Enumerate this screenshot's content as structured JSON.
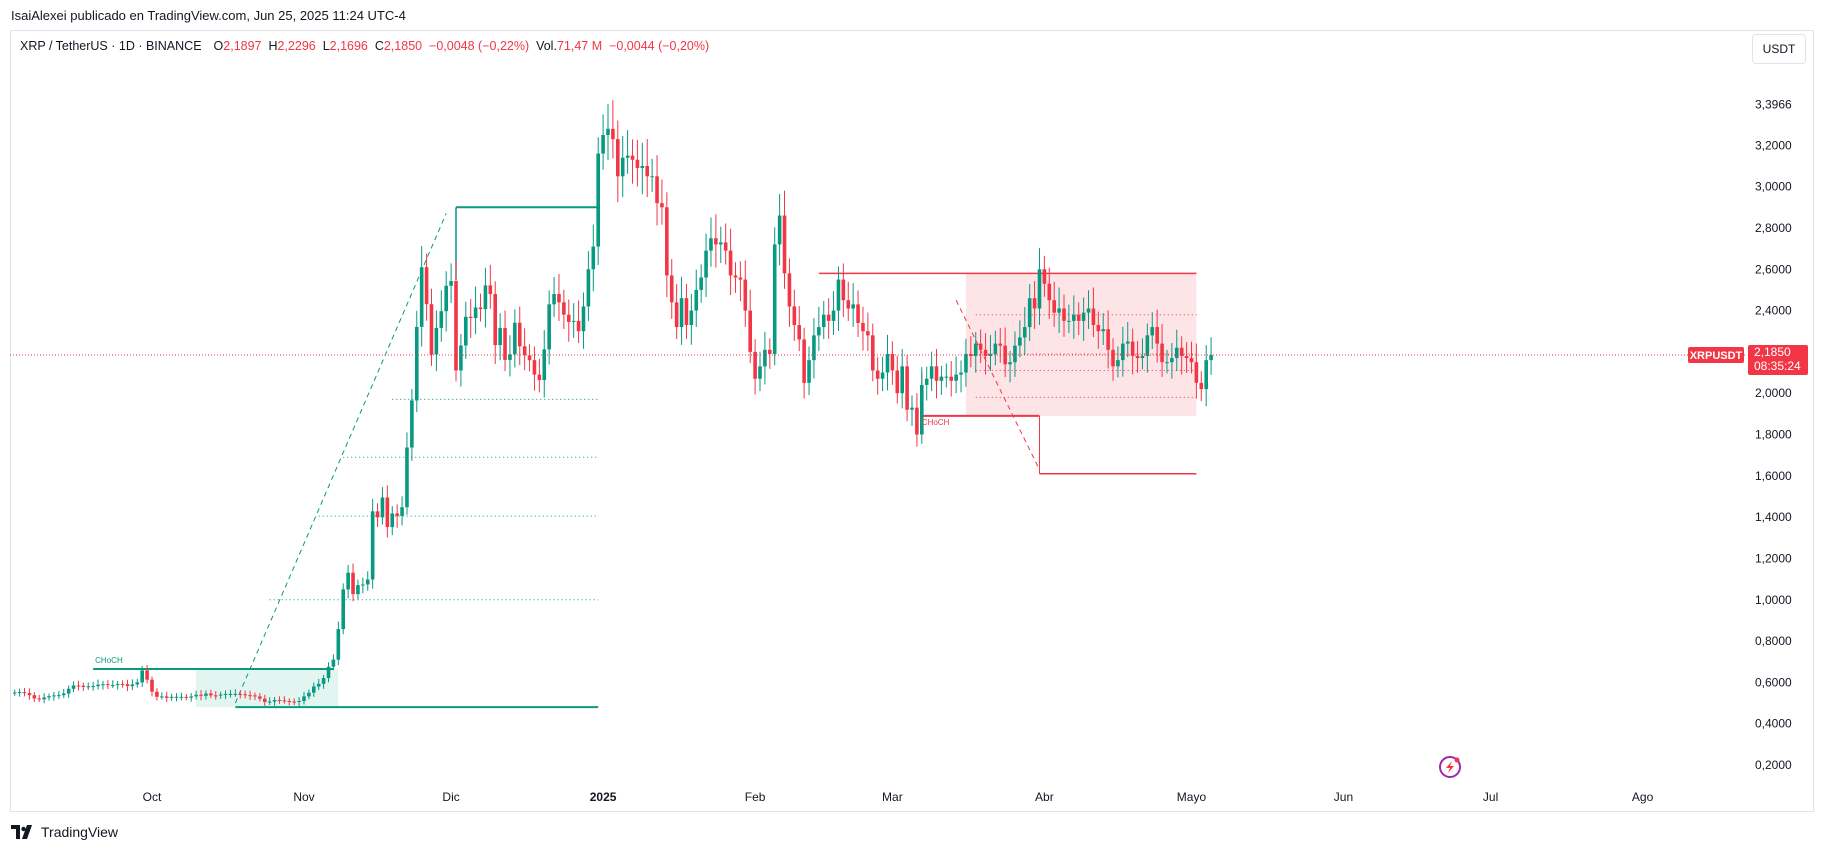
{
  "meta": {
    "published_by": "IsaiAlexei publicado en TradingView.com, Jun 25, 2025 11:24 UTC-4",
    "brand": "TradingView"
  },
  "header": {
    "symbol": "XRP / TetherUS · 1D · BINANCE",
    "o_label": "O",
    "o_value": "2,1897",
    "h_label": "H",
    "h_value": "2,2296",
    "l_label": "L",
    "l_value": "2,1696",
    "c_label": "C",
    "c_value": "2,1850",
    "change": "−0,0048 (−0,22%)",
    "vol_label": "Vol.",
    "vol_value": "71,47 M",
    "vol_change": "−0,0044 (−0,20%)"
  },
  "currency_button": "USDT",
  "price_badge": {
    "symbol": "XRPUSDT",
    "price": "2,1850",
    "countdown": "08:35:24"
  },
  "annotations": {
    "choch_1": "CHoCH",
    "choch_2": "CHoCH"
  },
  "colors": {
    "up": "#089981",
    "down": "#f23645",
    "zone_green": "#e3f5f1",
    "zone_red": "#fde4e6",
    "lightning": "#9c27b0"
  },
  "icons": {
    "lightning": "lightning-bolt-icon",
    "logo": "tradingview-logo-icon"
  },
  "chart_data": {
    "type": "candlestick",
    "y_axis": {
      "ticks": [
        0.2,
        0.4,
        0.6,
        0.8,
        1.0,
        1.2,
        1.4,
        1.6,
        1.8,
        2.0,
        2.2,
        2.4,
        2.6,
        2.8,
        3.0,
        3.2,
        3.3966
      ],
      "labels": [
        "0,2000",
        "0,4000",
        "0,6000",
        "0,8000",
        "1,0000",
        "1,2000",
        "1,4000",
        "1,6000",
        "1,8000",
        "2,0000",
        "2,2000",
        "2,4000",
        "2,6000",
        "2,8000",
        "3,0000",
        "3,2000",
        "3,3966"
      ]
    },
    "x_axis": {
      "labels": [
        "Oct",
        "Nov",
        "Dic",
        "2025",
        "Feb",
        "Mar",
        "Abr",
        "Mayo",
        "Jun",
        "Jul",
        "Ago"
      ],
      "bold": [
        "2025"
      ],
      "day_index": [
        21,
        52,
        82,
        113,
        144,
        172,
        203,
        233,
        264,
        294,
        325
      ]
    },
    "start_day_index": -7,
    "last_price": 2.185,
    "closes": [
      0.551,
      0.553,
      0.548,
      0.538,
      0.522,
      0.518,
      0.527,
      0.533,
      0.537,
      0.538,
      0.546,
      0.569,
      0.585,
      0.584,
      0.578,
      0.581,
      0.582,
      0.589,
      0.591,
      0.587,
      0.587,
      0.592,
      0.591,
      0.582,
      0.59,
      0.6,
      0.658,
      0.613,
      0.555,
      0.53,
      0.532,
      0.525,
      0.53,
      0.53,
      0.53,
      0.526,
      0.532,
      0.54,
      0.535,
      0.546,
      0.537,
      0.536,
      0.541,
      0.544,
      0.544,
      0.544,
      0.542,
      0.538,
      0.537,
      0.532,
      0.521,
      0.505,
      0.507,
      0.515,
      0.513,
      0.51,
      0.507,
      0.505,
      0.51,
      0.532,
      0.55,
      0.58,
      0.593,
      0.621,
      0.676,
      0.71,
      0.858,
      1.05,
      1.131,
      1.027,
      1.071,
      1.074,
      1.098,
      1.428,
      1.399,
      1.495,
      1.352,
      1.418,
      1.406,
      1.448,
      1.737,
      1.965,
      2.321,
      2.61,
      2.431,
      2.187,
      2.316,
      2.397,
      2.52,
      2.543,
      2.11,
      2.231,
      2.37,
      2.364,
      2.415,
      2.407,
      2.522,
      2.48,
      2.233,
      2.316,
      2.161,
      2.188,
      2.341,
      2.227,
      2.183,
      2.16,
      2.09,
      2.064,
      2.212,
      2.43,
      2.48,
      2.44,
      2.38,
      2.345,
      2.35,
      2.3,
      2.42,
      2.6,
      2.71,
      3.16,
      3.25,
      3.28,
      3.23,
      3.05,
      3.14,
      3.15,
      3.13,
      3.09,
      3.1,
      3.05,
      3.05,
      2.92,
      2.9,
      2.57,
      2.44,
      2.32,
      2.46,
      2.33,
      2.4,
      2.5,
      2.56,
      2.69,
      2.75,
      2.72,
      2.73,
      2.69,
      2.57,
      2.56,
      2.55,
      2.4,
      2.2,
      2.07,
      2.13,
      2.21,
      2.19,
      2.72,
      2.86,
      2.58,
      2.42,
      2.33,
      2.26,
      2.05,
      2.16,
      2.28,
      2.32,
      2.38,
      2.35,
      2.4,
      2.55,
      2.45,
      2.41,
      2.43,
      2.34,
      2.3,
      2.28,
      2.11,
      2.07,
      2.1,
      2.19,
      2.11,
      2.0,
      2.13,
      1.92,
      1.93,
      1.8,
      2.04,
      2.07,
      2.13,
      2.06,
      2.08,
      2.08,
      2.06,
      2.09,
      2.1,
      2.19,
      2.18,
      2.24,
      2.21,
      2.18,
      2.19,
      2.24,
      2.23,
      2.14,
      2.15,
      2.23,
      2.27,
      2.32,
      2.46,
      2.41,
      2.6,
      2.53,
      2.45,
      2.39,
      2.41,
      2.35,
      2.35,
      2.38,
      2.35,
      2.39,
      2.41,
      2.33,
      2.3,
      2.31,
      2.21,
      2.13,
      2.16,
      2.24,
      2.25,
      2.18,
      2.17,
      2.18,
      2.28,
      2.32,
      2.24,
      2.15,
      2.15,
      2.17,
      2.22,
      2.18,
      2.17,
      2.15,
      2.05,
      2.02,
      2.16,
      2.185
    ],
    "zones": [
      {
        "kind": "demand",
        "from_day": 30,
        "to_day": 59,
        "low": 0.48,
        "high": 0.665
      },
      {
        "kind": "supply",
        "from_day": 187,
        "to_day": 234,
        "low": 1.89,
        "high": 2.58
      }
    ],
    "fib_levels_1": [
      1.97,
      1.69,
      1.405,
      1.0
    ],
    "fib_levels_2": [
      2.38,
      2.19,
      2.11,
      1.98
    ]
  }
}
